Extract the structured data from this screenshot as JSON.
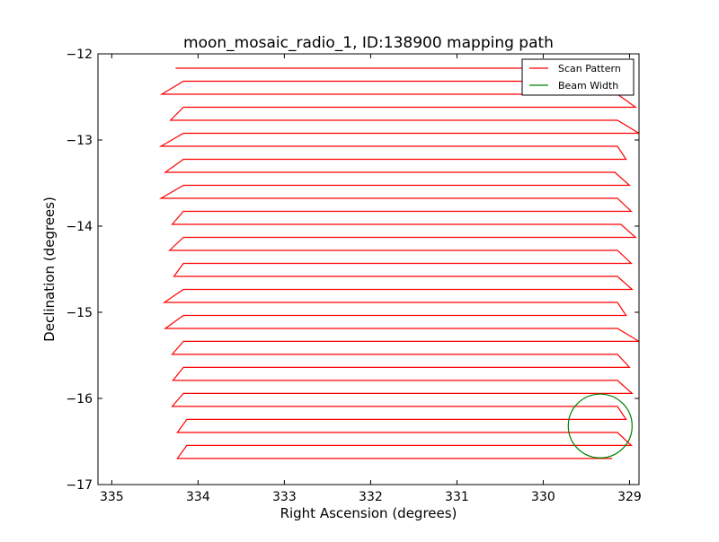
{
  "chart_data": {
    "type": "line",
    "title": "moon_mosaic_radio_1, ID:138900 mapping path",
    "xlabel": "Right Ascension (degrees)",
    "ylabel": "Declination (degrees)",
    "xlim": [
      335.16,
      328.89
    ],
    "ylim": [
      -17,
      -12
    ],
    "x_ticks": [
      335,
      334,
      333,
      332,
      331,
      330,
      329
    ],
    "x_tick_labels": [
      "335",
      "334",
      "333",
      "332",
      "331",
      "330",
      "329"
    ],
    "y_ticks": [
      -12,
      -13,
      -14,
      -15,
      -16,
      -17
    ],
    "y_tick_labels": [
      "−12",
      "−13",
      "−14",
      "−15",
      "−16",
      "−17"
    ],
    "grid": false,
    "legend": {
      "placement": "top-right",
      "entries": [
        "Scan Pattern",
        "Beam Width"
      ]
    },
    "series": [
      {
        "name": "Scan Pattern",
        "color": "#ff0000",
        "rows": [
          {
            "dec": -12.167,
            "ra_left": 334.26,
            "ra_right": 330.25
          },
          {
            "dec": -12.318,
            "ra_left": 334.17,
            "ra_right": 329.1
          },
          {
            "dec": -12.469,
            "ra_left": 334.42,
            "ra_right": 329.14
          },
          {
            "dec": -12.62,
            "ra_left": 334.17,
            "ra_right": 328.93
          },
          {
            "dec": -12.771,
            "ra_left": 334.32,
            "ra_right": 329.14
          },
          {
            "dec": -12.922,
            "ra_left": 334.17,
            "ra_right": 328.89
          },
          {
            "dec": -13.073,
            "ra_left": 334.43,
            "ra_right": 329.14
          },
          {
            "dec": -13.224,
            "ra_left": 334.17,
            "ra_right": 329.04
          },
          {
            "dec": -13.375,
            "ra_left": 334.38,
            "ra_right": 329.17
          },
          {
            "dec": -13.526,
            "ra_left": 334.17,
            "ra_right": 329.0
          },
          {
            "dec": -13.677,
            "ra_left": 334.43,
            "ra_right": 329.14
          },
          {
            "dec": -13.828,
            "ra_left": 334.17,
            "ra_right": 328.98
          },
          {
            "dec": -13.979,
            "ra_left": 334.3,
            "ra_right": 329.1
          },
          {
            "dec": -14.13,
            "ra_left": 334.17,
            "ra_right": 328.93
          },
          {
            "dec": -14.281,
            "ra_left": 334.33,
            "ra_right": 329.14
          },
          {
            "dec": -14.432,
            "ra_left": 334.17,
            "ra_right": 328.98
          },
          {
            "dec": -14.583,
            "ra_left": 334.28,
            "ra_right": 329.14
          },
          {
            "dec": -14.734,
            "ra_left": 334.17,
            "ra_right": 328.97
          },
          {
            "dec": -14.885,
            "ra_left": 334.39,
            "ra_right": 329.14
          },
          {
            "dec": -15.036,
            "ra_left": 334.17,
            "ra_right": 329.04
          },
          {
            "dec": -15.187,
            "ra_left": 334.38,
            "ra_right": 329.14
          },
          {
            "dec": -15.338,
            "ra_left": 334.17,
            "ra_right": 328.89
          },
          {
            "dec": -15.489,
            "ra_left": 334.3,
            "ra_right": 329.14
          },
          {
            "dec": -15.64,
            "ra_left": 334.17,
            "ra_right": 329.0
          },
          {
            "dec": -15.791,
            "ra_left": 334.29,
            "ra_right": 329.14
          },
          {
            "dec": -15.942,
            "ra_left": 334.17,
            "ra_right": 328.97
          },
          {
            "dec": -16.093,
            "ra_left": 334.3,
            "ra_right": 329.14
          },
          {
            "dec": -16.244,
            "ra_left": 334.13,
            "ra_right": 329.04
          },
          {
            "dec": -16.395,
            "ra_left": 334.24,
            "ra_right": 329.14
          },
          {
            "dec": -16.546,
            "ra_left": 334.13,
            "ra_right": 328.98
          },
          {
            "dec": -16.697,
            "ra_left": 334.24,
            "ra_right": 329.2
          }
        ]
      },
      {
        "name": "Beam Width",
        "color": "#008000",
        "center_ra": 329.34,
        "center_dec": -16.32,
        "radius_deg": 0.37
      }
    ]
  }
}
